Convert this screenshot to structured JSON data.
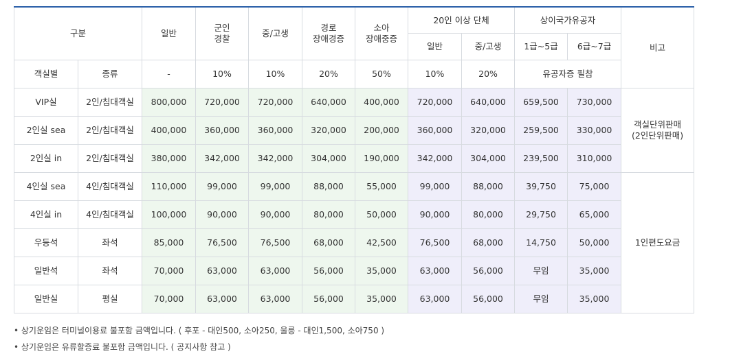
{
  "header": {
    "category": "구분",
    "general": "일반",
    "military": "군인\n경찰",
    "student": "중/고생",
    "senior": "경로\n장애경증",
    "child": "소아\n장애중증",
    "group": "20인 이상 단체",
    "group_general": "일반",
    "group_student": "중/고생",
    "merit": "상이국가유공자",
    "merit_1": "1급~5급",
    "merit_2": "6급~7급",
    "note": "비고",
    "room_type": "객실별",
    "kind": "종류",
    "disc_general": "-",
    "disc_military": "10%",
    "disc_student": "10%",
    "disc_senior": "20%",
    "disc_child": "50%",
    "disc_group_general": "10%",
    "disc_group_student": "20%",
    "merit_note": "유공자증 필참"
  },
  "rows": [
    {
      "room": "VIP실",
      "kind": "2인/침대객실",
      "v": [
        "800,000",
        "720,000",
        "720,000",
        "640,000",
        "400,000",
        "720,000",
        "640,000",
        "659,500",
        "730,000"
      ]
    },
    {
      "room": "2인실 sea",
      "kind": "2인/침대객실",
      "v": [
        "400,000",
        "360,000",
        "360,000",
        "320,000",
        "200,000",
        "360,000",
        "320,000",
        "259,500",
        "330,000"
      ]
    },
    {
      "room": "2인실 in",
      "kind": "2인/침대객실",
      "v": [
        "380,000",
        "342,000",
        "342,000",
        "304,000",
        "190,000",
        "342,000",
        "304,000",
        "239,500",
        "310,000"
      ]
    },
    {
      "room": "4인실 sea",
      "kind": "4인/침대객실",
      "v": [
        "110,000",
        "99,000",
        "99,000",
        "88,000",
        "55,000",
        "99,000",
        "88,000",
        "39,750",
        "75,000"
      ]
    },
    {
      "room": "4인실 in",
      "kind": "4인/침대객실",
      "v": [
        "100,000",
        "90,000",
        "90,000",
        "80,000",
        "50,000",
        "90,000",
        "80,000",
        "29,750",
        "65,000"
      ]
    },
    {
      "room": "우등석",
      "kind": "좌석",
      "v": [
        "85,000",
        "76,500",
        "76,500",
        "68,000",
        "42,500",
        "76,500",
        "68,000",
        "14,750",
        "50,000"
      ]
    },
    {
      "room": "일반석",
      "kind": "좌석",
      "v": [
        "70,000",
        "63,000",
        "63,000",
        "56,000",
        "35,000",
        "63,000",
        "56,000",
        "무임",
        "35,000"
      ]
    },
    {
      "room": "일반실",
      "kind": "평실",
      "v": [
        "70,000",
        "63,000",
        "63,000",
        "56,000",
        "35,000",
        "63,000",
        "56,000",
        "무임",
        "35,000"
      ]
    }
  ],
  "remarks": {
    "first": "객실단위판매\n(2인단위판매)",
    "second": "1인편도요금"
  },
  "notes": [
    "• 상기운임은 터미널이용료 불포함 금액입니다. ( 후포 - 대인500, 소아250, 울릉 - 대인1,500, 소아750 )",
    "• 상기운임은 유류할증료 불포함 금액입니다. ( 공지사항 참고 )"
  ],
  "colors": {
    "accent": "#2a5fa8",
    "green_bg": "#eef7ee",
    "purple_bg": "#efeefa"
  }
}
